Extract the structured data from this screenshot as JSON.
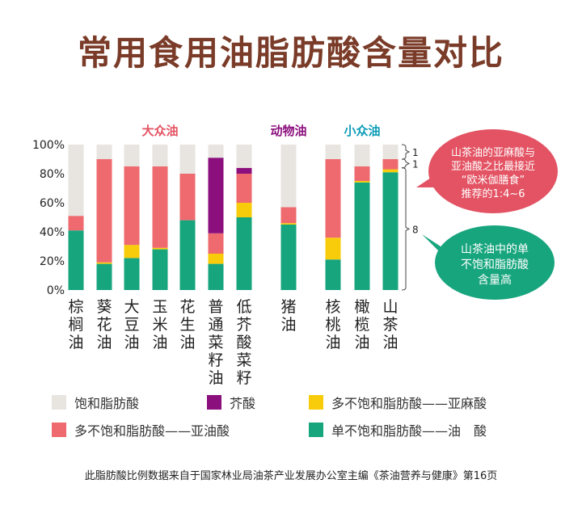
{
  "title": "常用食用油脂肪酸含量对比",
  "colors": {
    "saturated": "#e8e5e1",
    "erucic": "#8b0f7d",
    "linolenic": "#f8cc0a",
    "linoleic": "#ee6a6e",
    "oleic": "#17a57e",
    "group_main": "#e35363",
    "group_animal": "#8b0f7d",
    "group_minor": "#0c9db8",
    "title": "#7a3b28"
  },
  "groups": [
    {
      "label": "大众油",
      "color_key": "group_main"
    },
    {
      "label": "动物油",
      "color_key": "group_animal"
    },
    {
      "label": "小众油",
      "color_key": "group_minor"
    }
  ],
  "chart_data": {
    "type": "bar",
    "stacked": true,
    "categories": [
      "棕榈油",
      "葵花油",
      "大豆油",
      "玉米油",
      "花生油",
      "普通菜籽油",
      "低芥酸菜籽油",
      "猪油",
      "核桃油",
      "橄榄油",
      "山茶油"
    ],
    "ylim": [
      0,
      100
    ],
    "yticks": [
      "0%",
      "20%",
      "40%",
      "60%",
      "80%",
      "100%"
    ],
    "series": [
      {
        "name": "单不饱和脂肪酸——油　酸",
        "key": "oleic",
        "values": [
          41,
          18,
          22,
          28,
          48,
          18,
          50,
          45,
          21,
          74,
          81
        ]
      },
      {
        "name": "多不饱和脂肪酸——亚麻酸",
        "key": "linolenic",
        "values": [
          0,
          1,
          9,
          1,
          0,
          7,
          10,
          1,
          15,
          1,
          2
        ]
      },
      {
        "name": "多不饱和脂肪酸——亚油酸",
        "key": "linoleic",
        "values": [
          10,
          71,
          54,
          56,
          32,
          14,
          20,
          11,
          54,
          10,
          7
        ]
      },
      {
        "name": "芥酸",
        "key": "erucic",
        "values": [
          0,
          0,
          0,
          0,
          0,
          52,
          4,
          0,
          0,
          0,
          0
        ]
      },
      {
        "name": "饱和脂肪酸",
        "key": "saturated",
        "values": [
          49,
          10,
          15,
          15,
          20,
          9,
          16,
          43,
          10,
          15,
          10
        ]
      }
    ],
    "brackets": [
      "1",
      "1",
      "8"
    ]
  },
  "legend": [
    {
      "label": "饱和脂肪酸",
      "key": "saturated"
    },
    {
      "label": "芥酸",
      "key": "erucic"
    },
    {
      "label": "多不饱和脂肪酸——亚麻酸",
      "key": "linolenic"
    },
    {
      "label": "多不饱和脂肪酸——亚油酸",
      "key": "linoleic"
    },
    {
      "label": "单不饱和脂肪酸——油　酸",
      "key": "oleic"
    }
  ],
  "callouts": {
    "red": "山茶油的亚麻酸与亚油酸之比最接近“欧米伽膳食”推荐的1:4~6",
    "green": "山茶油中的单不饱和脂肪酸含量高"
  },
  "source": "此脂肪酸比例数据来自于国家林业局油茶产业发展办公室主编《茶油营养与健康》第16页"
}
